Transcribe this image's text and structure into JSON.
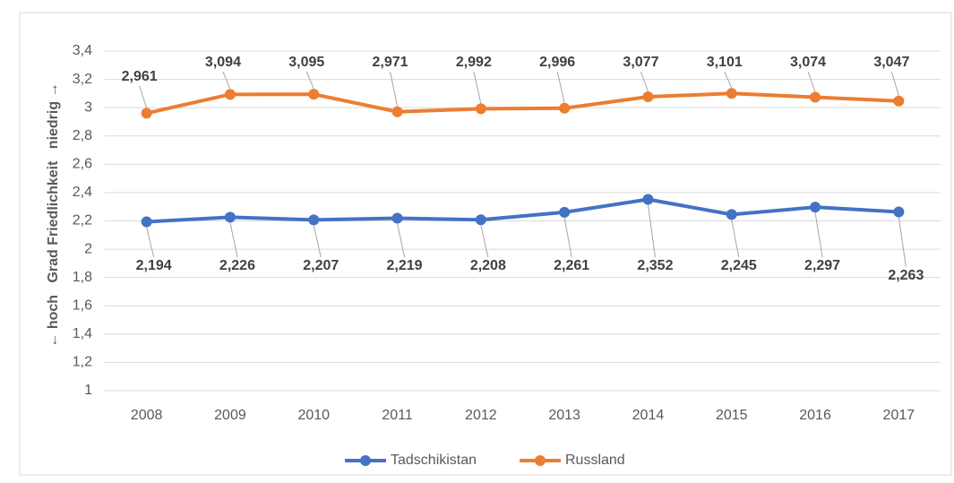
{
  "chart_data": {
    "type": "line",
    "ylabel": "← hoch   Grad Friedlichkeit   niedrig →",
    "categories": [
      "2008",
      "2009",
      "2010",
      "2011",
      "2012",
      "2013",
      "2014",
      "2015",
      "2016",
      "2017"
    ],
    "series": [
      {
        "name": "Tadschikistan",
        "color": "#4472c4",
        "values": [
          2.194,
          2.226,
          2.207,
          2.219,
          2.208,
          2.261,
          2.352,
          2.245,
          2.297,
          2.263
        ],
        "value_labels": [
          "2,194",
          "2,226",
          "2,207",
          "2,219",
          "2,208",
          "2,261",
          "2,352",
          "2,245",
          "2,297",
          "2,263"
        ]
      },
      {
        "name": "Russland",
        "color": "#ed7d31",
        "values": [
          2.961,
          3.094,
          3.095,
          2.971,
          2.992,
          2.996,
          3.077,
          3.101,
          3.074,
          3.047
        ],
        "value_labels": [
          "2,961",
          "3,094",
          "3,095",
          "2,971",
          "2,992",
          "2,996",
          "3,077",
          "3,101",
          "3,074",
          "3,047"
        ]
      }
    ],
    "ylim": [
      1,
      3.4
    ],
    "yticks": [
      1,
      {
        "value": 1.2,
        "label": "1,2"
      },
      {
        "value": 1.4,
        "label": "1,4"
      },
      {
        "value": 1.6,
        "label": "1,6"
      },
      {
        "value": 1.8,
        "label": "1,8"
      },
      2,
      {
        "value": 2.2,
        "label": "2,2"
      },
      {
        "value": 2.4,
        "label": "2,4"
      },
      {
        "value": 2.6,
        "label": "2,6"
      },
      {
        "value": 2.8,
        "label": "2,8"
      },
      3,
      {
        "value": 3.2,
        "label": "3,2"
      },
      {
        "value": 3.4,
        "label": "3,4"
      }
    ],
    "grid": true,
    "legend": "bottom"
  }
}
